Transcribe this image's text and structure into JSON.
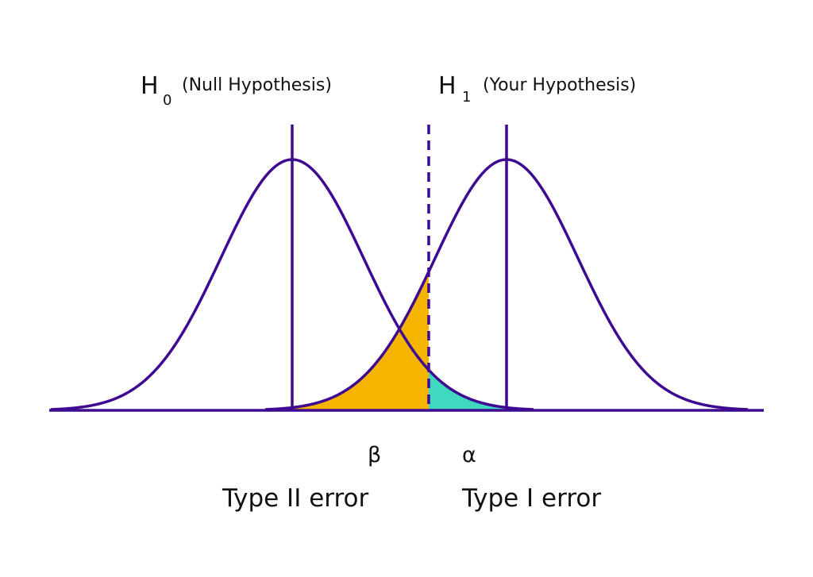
{
  "hypotheses": [
    {
      "symbol": "H",
      "subscript": "0",
      "text": "(Null Hypothesis)"
    },
    {
      "symbol": "H",
      "subscript": "1",
      "text": "(Your Hypothesis)"
    }
  ],
  "errors": [
    {
      "symbol": "β",
      "label": "Type II error"
    },
    {
      "symbol": "α",
      "label": "Type I error"
    }
  ]
}
